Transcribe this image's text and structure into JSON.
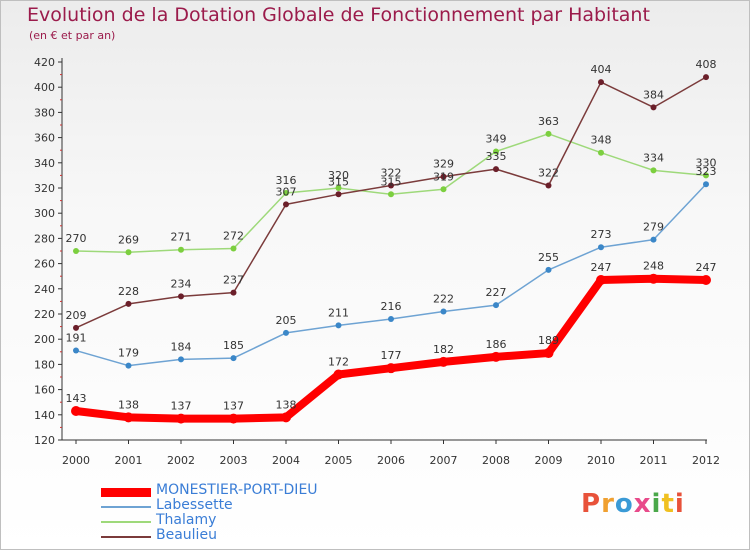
{
  "title": "Evolution de la Dotation Globale de Fonctionnement par Habitant",
  "subtitle": "(en € et par an)",
  "logo": "Proxiti",
  "colors": {
    "title": "#9b1b4b",
    "axis": "#333333",
    "legend_text": "#3a7dd6",
    "logo_letters": [
      "#e8523a",
      "#f0a030",
      "#3a9ad6",
      "#e84a8a",
      "#4aa84a",
      "#f0c020",
      "#e8523a"
    ]
  },
  "chart_data": {
    "type": "line",
    "title": "Evolution de la Dotation Globale de Fonctionnement par Habitant",
    "xlabel": "",
    "ylabel": "(en € et par an)",
    "categories": [
      "2000",
      "2001",
      "2002",
      "2003",
      "2004",
      "2005",
      "2006",
      "2007",
      "2008",
      "2009",
      "2010",
      "2011",
      "2012"
    ],
    "ylim": [
      120,
      420
    ],
    "yticks": [
      120,
      140,
      160,
      180,
      200,
      220,
      240,
      260,
      280,
      300,
      320,
      340,
      360,
      380,
      400,
      420
    ],
    "grid": false,
    "legend_position": "bottom-left",
    "series": [
      {
        "name": "MONESTIER-PORT-DIEU",
        "color": "#ff0000",
        "point_color": "#ff0000",
        "emphasis": true,
        "values": [
          143,
          138,
          137,
          137,
          138,
          172,
          177,
          182,
          186,
          189,
          247,
          248,
          247
        ]
      },
      {
        "name": "Labessette",
        "color": "#6ea3d3",
        "point_color": "#3b87c8",
        "emphasis": false,
        "values": [
          191,
          179,
          184,
          185,
          205,
          211,
          216,
          222,
          227,
          255,
          273,
          279,
          323
        ]
      },
      {
        "name": "Thalamy",
        "color": "#9ed97a",
        "point_color": "#7ccf3f",
        "emphasis": false,
        "values": [
          270,
          269,
          271,
          272,
          316,
          320,
          315,
          319,
          349,
          363,
          348,
          334,
          330
        ]
      },
      {
        "name": "Beaulieu",
        "color": "#7b3b3b",
        "point_color": "#6b1f2a",
        "emphasis": false,
        "values": [
          209,
          228,
          234,
          237,
          307,
          315,
          322,
          329,
          335,
          322,
          404,
          384,
          408
        ]
      }
    ]
  }
}
